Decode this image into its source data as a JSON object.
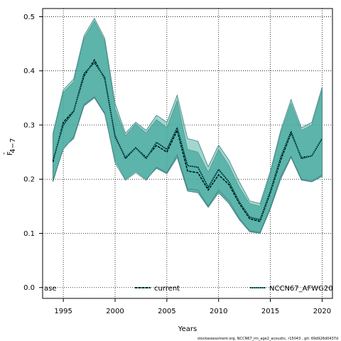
{
  "chart_data": {
    "type": "line",
    "xlabel": "Years",
    "ylabel_main": "F",
    "ylabel_sub": "4−7",
    "xlim": [
      1993,
      2021
    ],
    "ylim": [
      -0.02,
      0.515
    ],
    "xticks": [
      1995,
      2000,
      2005,
      2010,
      2015,
      2020
    ],
    "yticks": [
      0.0,
      0.1,
      0.2,
      0.3,
      0.4,
      0.5
    ],
    "ytick_labels": [
      "0.0",
      "0.1",
      "0.2",
      "0.3",
      "0.4",
      "0.5"
    ],
    "grid": true,
    "colors": {
      "band_a": "#2e9a96",
      "band_b": "#58b4a6",
      "band_edge": "#3f7f7f",
      "line": "#000000",
      "marker": "#2e9a96"
    },
    "x": [
      1994,
      1995,
      1996,
      1997,
      1998,
      1999,
      2000,
      2001,
      2002,
      2003,
      2004,
      2005,
      2006,
      2007,
      2008,
      2009,
      2010,
      2011,
      2012,
      2013,
      2014,
      2015,
      2016,
      2017,
      2018,
      2019,
      2020
    ],
    "series": [
      {
        "name": "current",
        "style": "dashed",
        "values": [
          0.232,
          0.305,
          0.326,
          0.39,
          0.42,
          0.385,
          0.28,
          0.238,
          0.258,
          0.24,
          0.262,
          0.25,
          0.29,
          0.215,
          0.212,
          0.18,
          0.208,
          0.19,
          0.155,
          0.127,
          0.122,
          0.175,
          0.235,
          0.285,
          0.24,
          0.243,
          0.275
        ],
        "lower": [
          0.195,
          0.258,
          0.275,
          0.335,
          0.35,
          0.32,
          0.235,
          0.2,
          0.215,
          0.2,
          0.22,
          0.21,
          0.24,
          0.178,
          0.175,
          0.148,
          0.175,
          0.155,
          0.125,
          0.103,
          0.1,
          0.145,
          0.2,
          0.24,
          0.198,
          0.195,
          0.205
        ],
        "upper": [
          0.28,
          0.36,
          0.38,
          0.46,
          0.492,
          0.455,
          0.33,
          0.28,
          0.302,
          0.285,
          0.31,
          0.295,
          0.345,
          0.255,
          0.25,
          0.213,
          0.255,
          0.225,
          0.185,
          0.155,
          0.15,
          0.21,
          0.285,
          0.34,
          0.29,
          0.3,
          0.365
        ]
      },
      {
        "name": "NCCN67_AFWG20",
        "style": "dotted",
        "values": [
          0.235,
          0.3,
          0.325,
          0.395,
          0.415,
          0.388,
          0.278,
          0.24,
          0.258,
          0.238,
          0.268,
          0.255,
          0.295,
          0.225,
          0.222,
          0.185,
          0.218,
          0.195,
          0.158,
          0.13,
          0.125,
          0.178,
          0.24,
          0.288,
          0.238,
          0.243,
          0.275
        ],
        "lower": [
          0.198,
          0.255,
          0.278,
          0.338,
          0.352,
          0.322,
          0.23,
          0.198,
          0.212,
          0.198,
          0.222,
          0.212,
          0.245,
          0.182,
          0.18,
          0.15,
          0.18,
          0.16,
          0.128,
          0.105,
          0.102,
          0.148,
          0.205,
          0.242,
          0.2,
          0.196,
          0.208
        ],
        "upper": [
          0.285,
          0.365,
          0.385,
          0.465,
          0.497,
          0.46,
          0.34,
          0.285,
          0.305,
          0.29,
          0.318,
          0.305,
          0.355,
          0.275,
          0.27,
          0.223,
          0.263,
          0.235,
          0.195,
          0.16,
          0.155,
          0.215,
          0.29,
          0.347,
          0.295,
          0.305,
          0.37
        ]
      }
    ],
    "legend": {
      "placement": "bottom",
      "entries": [
        {
          "label": "ase",
          "style": "none"
        },
        {
          "label": "current",
          "style": "dashed"
        },
        {
          "label": "NCCN67_AFWG20",
          "style": "dotted"
        }
      ]
    },
    "footer": "stockassessment.org, NCCN67_rm_age2_acoustic, r15043 , git: 69d926d0437d"
  }
}
